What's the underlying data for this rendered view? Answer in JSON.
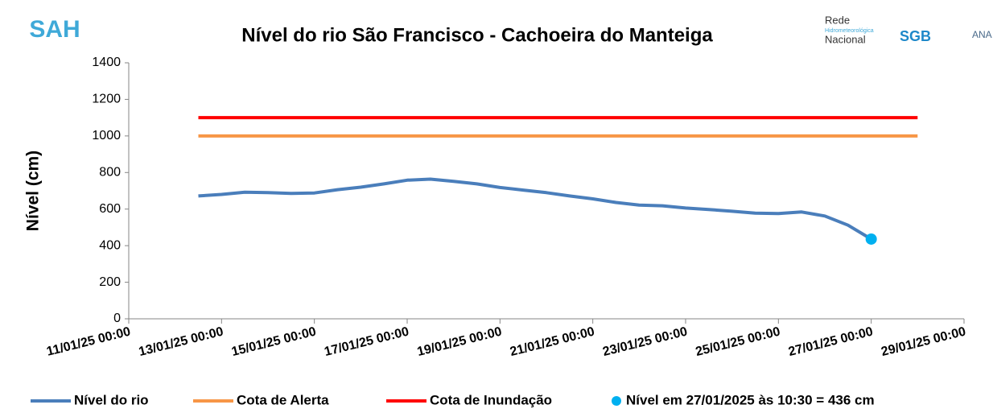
{
  "chart_data": {
    "type": "line",
    "title": "Nível do rio São Francisco - Cachoeira do Manteiga",
    "y_label": "Nível (cm)",
    "logos": {
      "left": "SAH",
      "right": [
        "Rede",
        "Hidrometeorológica",
        "Nacional",
        "SGB",
        "ANA"
      ]
    },
    "xlim": [
      "2025-01-11T00:00",
      "2025-01-29T00:00"
    ],
    "xticks": [
      {
        "value": "2025-01-11T00:00",
        "label": "11/01/25 00:00"
      },
      {
        "value": "2025-01-13T00:00",
        "label": "13/01/25 00:00"
      },
      {
        "value": "2025-01-15T00:00",
        "label": "15/01/25 00:00"
      },
      {
        "value": "2025-01-17T00:00",
        "label": "17/01/25 00:00"
      },
      {
        "value": "2025-01-19T00:00",
        "label": "19/01/25 00:00"
      },
      {
        "value": "2025-01-21T00:00",
        "label": "21/01/25 00:00"
      },
      {
        "value": "2025-01-23T00:00",
        "label": "23/01/25 00:00"
      },
      {
        "value": "2025-01-25T00:00",
        "label": "25/01/25 00:00"
      },
      {
        "value": "2025-01-27T00:00",
        "label": "27/01/25 00:00"
      },
      {
        "value": "2025-01-29T00:00",
        "label": "29/01/25 00:00"
      }
    ],
    "ylim": [
      0,
      1400
    ],
    "yticks": [
      0,
      200,
      400,
      600,
      800,
      1000,
      1200,
      1400
    ],
    "grid": false,
    "legend": "bottom",
    "series": [
      {
        "name": "Nível do rio",
        "color": "#4a7ebb",
        "style": "line",
        "x": [
          "2025-01-12T12:00",
          "2025-01-13T00:00",
          "2025-01-13T12:00",
          "2025-01-14T00:00",
          "2025-01-14T12:00",
          "2025-01-15T00:00",
          "2025-01-15T12:00",
          "2025-01-16T00:00",
          "2025-01-16T12:00",
          "2025-01-17T00:00",
          "2025-01-17T12:00",
          "2025-01-18T00:00",
          "2025-01-18T12:00",
          "2025-01-19T00:00",
          "2025-01-19T12:00",
          "2025-01-20T00:00",
          "2025-01-20T12:00",
          "2025-01-21T00:00",
          "2025-01-21T12:00",
          "2025-01-22T00:00",
          "2025-01-22T12:00",
          "2025-01-23T00:00",
          "2025-01-23T12:00",
          "2025-01-24T00:00",
          "2025-01-24T12:00",
          "2025-01-25T00:00",
          "2025-01-25T12:00",
          "2025-01-26T00:00",
          "2025-01-26T12:00",
          "2025-01-27T00:00"
        ],
        "values": [
          672,
          680,
          692,
          690,
          686,
          688,
          706,
          720,
          738,
          758,
          764,
          752,
          738,
          718,
          704,
          690,
          672,
          656,
          636,
          622,
          618,
          606,
          598,
          588,
          578,
          576,
          584,
          562,
          512,
          436
        ]
      },
      {
        "name": "Cota de Alerta",
        "color": "#f79646",
        "style": "line",
        "x": [
          "2025-01-12T12:00",
          "2025-01-28T00:00"
        ],
        "values": [
          1000,
          1000
        ]
      },
      {
        "name": "Cota de Inundação",
        "color": "#ff0000",
        "style": "line",
        "x": [
          "2025-01-12T12:00",
          "2025-01-28T00:00"
        ],
        "values": [
          1100,
          1100
        ]
      },
      {
        "name": "Nível em 27/01/2025 às 10:30 = 436 cm",
        "color": "#00b0f0",
        "style": "point",
        "x": [
          "2025-01-27T00:00"
        ],
        "values": [
          436
        ]
      }
    ]
  }
}
